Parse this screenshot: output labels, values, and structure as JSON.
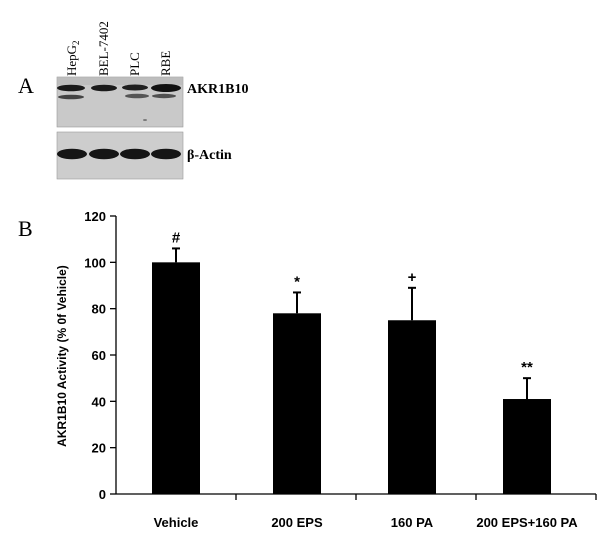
{
  "panel_a": {
    "panel_label": "A",
    "lanes": [
      {
        "text": "HepG",
        "sub": "2"
      },
      {
        "text": "BEL-7402",
        "sub": ""
      },
      {
        "text": "PLC",
        "sub": ""
      },
      {
        "text": "RBE",
        "sub": ""
      }
    ],
    "blots": [
      {
        "label": "AKR1B10"
      },
      {
        "label": "β-Actin"
      }
    ],
    "colors": {
      "membrane": "#c9c9c9",
      "band": "#1a1a1a"
    }
  },
  "panel_b": {
    "panel_label": "B"
  },
  "chart_data": {
    "type": "bar",
    "categories": [
      "Vehicle",
      "200 EPS",
      "160 PA",
      "200 EPS+160 PA"
    ],
    "values": [
      100,
      78,
      75,
      41
    ],
    "error": [
      6,
      9,
      14,
      9
    ],
    "annotations": [
      "#",
      "*",
      "+",
      "**"
    ],
    "title": "",
    "xlabel": "",
    "ylabel": "AKR1B10 Activity (% 0f Vehicle)",
    "ylim": [
      0,
      120
    ],
    "yticks": [
      0,
      20,
      40,
      60,
      80,
      100,
      120
    ],
    "grid": false,
    "legend": "none",
    "colors": {
      "bar": "#000000"
    }
  }
}
